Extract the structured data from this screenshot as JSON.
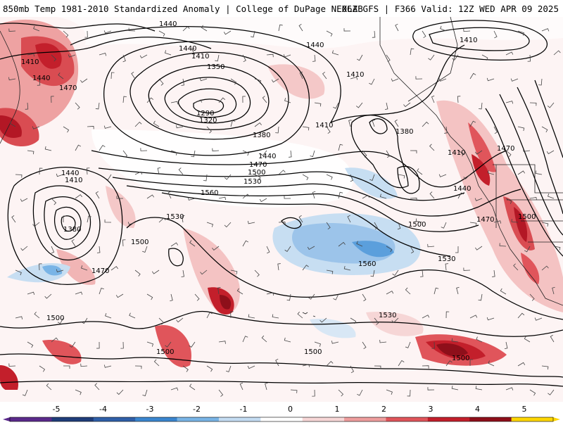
{
  "header": {
    "left_title": "850mb Temp 1981-2010 Standardized Anomaly | College of DuPage NEXLAB",
    "right_title": "06Z GFS | F366 Valid: 12Z WED APR 09 2025"
  },
  "colorbar": {
    "ticks": [
      "-5",
      "-4",
      "-3",
      "-2",
      "-1",
      "0",
      "1",
      "2",
      "3",
      "4",
      "5"
    ],
    "colors": [
      "#5b2a8c",
      "#1f3d7a",
      "#2f5fa8",
      "#3a86cf",
      "#79b4e6",
      "#c4dcf2",
      "#ffffff",
      "#f6d6d6",
      "#ee9d9d",
      "#e0555b",
      "#c31f2b",
      "#8e0f1a",
      "#ffd700"
    ]
  },
  "map": {
    "contour_labels": [
      {
        "text": "1440"
      },
      {
        "text": "1440"
      },
      {
        "text": "1410"
      },
      {
        "text": "1410"
      },
      {
        "text": "1350"
      },
      {
        "text": "1440"
      },
      {
        "text": "1410"
      },
      {
        "text": "1410"
      },
      {
        "text": "1440"
      },
      {
        "text": "1470"
      },
      {
        "text": "1290"
      },
      {
        "text": "1320"
      },
      {
        "text": "1380"
      },
      {
        "text": "1410"
      },
      {
        "text": "1380"
      },
      {
        "text": "1440"
      },
      {
        "text": "1470"
      },
      {
        "text": "1500"
      },
      {
        "text": "1530"
      },
      {
        "text": "1560"
      },
      {
        "text": "1440"
      },
      {
        "text": "1410"
      },
      {
        "text": "1380"
      },
      {
        "text": "1530"
      },
      {
        "text": "1500"
      },
      {
        "text": "1470"
      },
      {
        "text": "1410"
      },
      {
        "text": "1470"
      },
      {
        "text": "1440"
      },
      {
        "text": "1500"
      },
      {
        "text": "1470"
      },
      {
        "text": "1500"
      },
      {
        "text": "1560"
      },
      {
        "text": "1530"
      },
      {
        "text": "1530"
      },
      {
        "text": "1500"
      },
      {
        "text": "1500"
      },
      {
        "text": "1500"
      },
      {
        "text": "1500"
      }
    ]
  }
}
